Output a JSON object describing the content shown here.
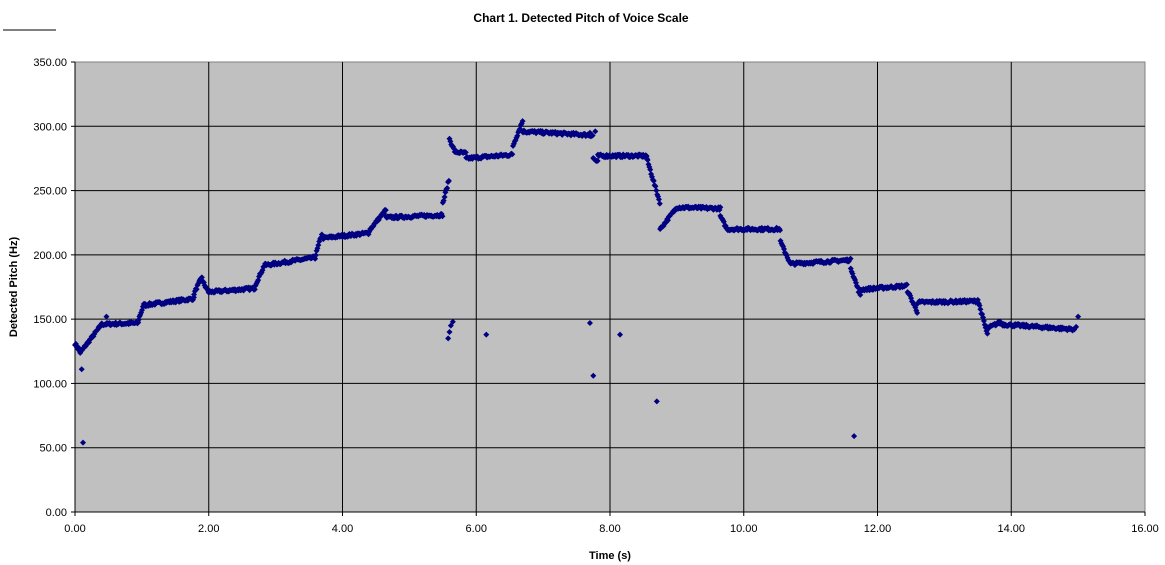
{
  "chart_data": {
    "type": "scatter",
    "title": "Chart 1. Detected Pitch of Voice Scale",
    "xlabel": "Time (s)",
    "ylabel": "Detected Pitch (Hz)",
    "xlim": [
      0,
      16
    ],
    "ylim": [
      0,
      350
    ],
    "x_ticks": [
      "0.00",
      "2.00",
      "4.00",
      "6.00",
      "8.00",
      "10.00",
      "12.00",
      "14.00",
      "16.00"
    ],
    "y_ticks": [
      "0.00",
      "50.00",
      "100.00",
      "150.00",
      "200.00",
      "250.00",
      "300.00",
      "350.00"
    ],
    "grid": true,
    "legend": "none",
    "colors": {
      "plot_background": "#c0c0c0",
      "marker": "#000080",
      "grid": "#000000"
    },
    "marker": "diamond",
    "segments": [
      {
        "t0": 0.0,
        "t1": 0.08,
        "f0": 131,
        "f1": 124
      },
      {
        "t0": 0.08,
        "t1": 0.4,
        "f0": 124,
        "f1": 146
      },
      {
        "t0": 0.4,
        "t1": 0.95,
        "f0": 146,
        "f1": 147
      },
      {
        "t0": 0.95,
        "t1": 1.05,
        "f0": 150,
        "f1": 164
      },
      {
        "t0": 1.05,
        "t1": 1.78,
        "f0": 161,
        "f1": 166
      },
      {
        "t0": 1.78,
        "t1": 1.9,
        "f0": 170,
        "f1": 183
      },
      {
        "t0": 1.9,
        "t1": 2.0,
        "f0": 180,
        "f1": 171
      },
      {
        "t0": 2.0,
        "t1": 2.7,
        "f0": 171,
        "f1": 174
      },
      {
        "t0": 2.7,
        "t1": 2.85,
        "f0": 177,
        "f1": 194
      },
      {
        "t0": 2.85,
        "t1": 3.6,
        "f0": 192,
        "f1": 198
      },
      {
        "t0": 3.6,
        "t1": 3.7,
        "f0": 200,
        "f1": 218
      },
      {
        "t0": 3.7,
        "t1": 4.4,
        "f0": 213,
        "f1": 217
      },
      {
        "t0": 4.4,
        "t1": 4.65,
        "f0": 219,
        "f1": 235
      },
      {
        "t0": 4.65,
        "t1": 5.5,
        "f0": 229,
        "f1": 231
      },
      {
        "t0": 5.5,
        "t1": 5.6,
        "f0": 240,
        "f1": 260
      },
      {
        "t0": 5.6,
        "t1": 5.7,
        "f0": 290,
        "f1": 278
      },
      {
        "t0": 5.7,
        "t1": 5.85,
        "f0": 280,
        "f1": 279
      },
      {
        "t0": 5.85,
        "t1": 6.55,
        "f0": 275,
        "f1": 278
      },
      {
        "t0": 6.55,
        "t1": 6.7,
        "f0": 285,
        "f1": 305
      },
      {
        "t0": 6.7,
        "t1": 7.75,
        "f0": 296,
        "f1": 293
      },
      {
        "t0": 7.75,
        "t1": 7.82,
        "f0": 275,
        "f1": 272
      },
      {
        "t0": 7.82,
        "t1": 8.55,
        "f0": 277,
        "f1": 277
      },
      {
        "t0": 8.55,
        "t1": 8.75,
        "f0": 275,
        "f1": 240
      },
      {
        "t0": 8.75,
        "t1": 9.0,
        "f0": 220,
        "f1": 237
      },
      {
        "t0": 9.0,
        "t1": 9.65,
        "f0": 237,
        "f1": 236
      },
      {
        "t0": 9.65,
        "t1": 9.75,
        "f0": 230,
        "f1": 220
      },
      {
        "t0": 9.75,
        "t1": 10.55,
        "f0": 220,
        "f1": 220
      },
      {
        "t0": 10.55,
        "t1": 10.7,
        "f0": 210,
        "f1": 193
      },
      {
        "t0": 10.7,
        "t1": 11.6,
        "f0": 193,
        "f1": 196
      },
      {
        "t0": 11.6,
        "t1": 11.75,
        "f0": 190,
        "f1": 167
      },
      {
        "t0": 11.75,
        "t1": 12.45,
        "f0": 173,
        "f1": 176
      },
      {
        "t0": 12.45,
        "t1": 12.6,
        "f0": 172,
        "f1": 155
      },
      {
        "t0": 12.6,
        "t1": 13.5,
        "f0": 163,
        "f1": 164
      },
      {
        "t0": 13.5,
        "t1": 13.65,
        "f0": 165,
        "f1": 137
      },
      {
        "t0": 13.65,
        "t1": 13.85,
        "f0": 143,
        "f1": 148
      },
      {
        "t0": 13.85,
        "t1": 14.95,
        "f0": 146,
        "f1": 142
      }
    ],
    "step": 0.013,
    "outliers": [
      {
        "x": 0.05,
        "y": 128
      },
      {
        "x": 0.1,
        "y": 111
      },
      {
        "x": 0.12,
        "y": 54
      },
      {
        "x": 0.47,
        "y": 152
      },
      {
        "x": 1.05,
        "y": 160
      },
      {
        "x": 5.58,
        "y": 135
      },
      {
        "x": 5.6,
        "y": 140
      },
      {
        "x": 5.62,
        "y": 145
      },
      {
        "x": 5.65,
        "y": 148
      },
      {
        "x": 6.15,
        "y": 138
      },
      {
        "x": 7.7,
        "y": 147
      },
      {
        "x": 7.75,
        "y": 106
      },
      {
        "x": 7.78,
        "y": 296
      },
      {
        "x": 7.7,
        "y": 295
      },
      {
        "x": 8.15,
        "y": 138
      },
      {
        "x": 8.7,
        "y": 86
      },
      {
        "x": 11.65,
        "y": 59
      },
      {
        "x": 15.0,
        "y": 152
      },
      {
        "x": 14.97,
        "y": 144
      }
    ]
  }
}
